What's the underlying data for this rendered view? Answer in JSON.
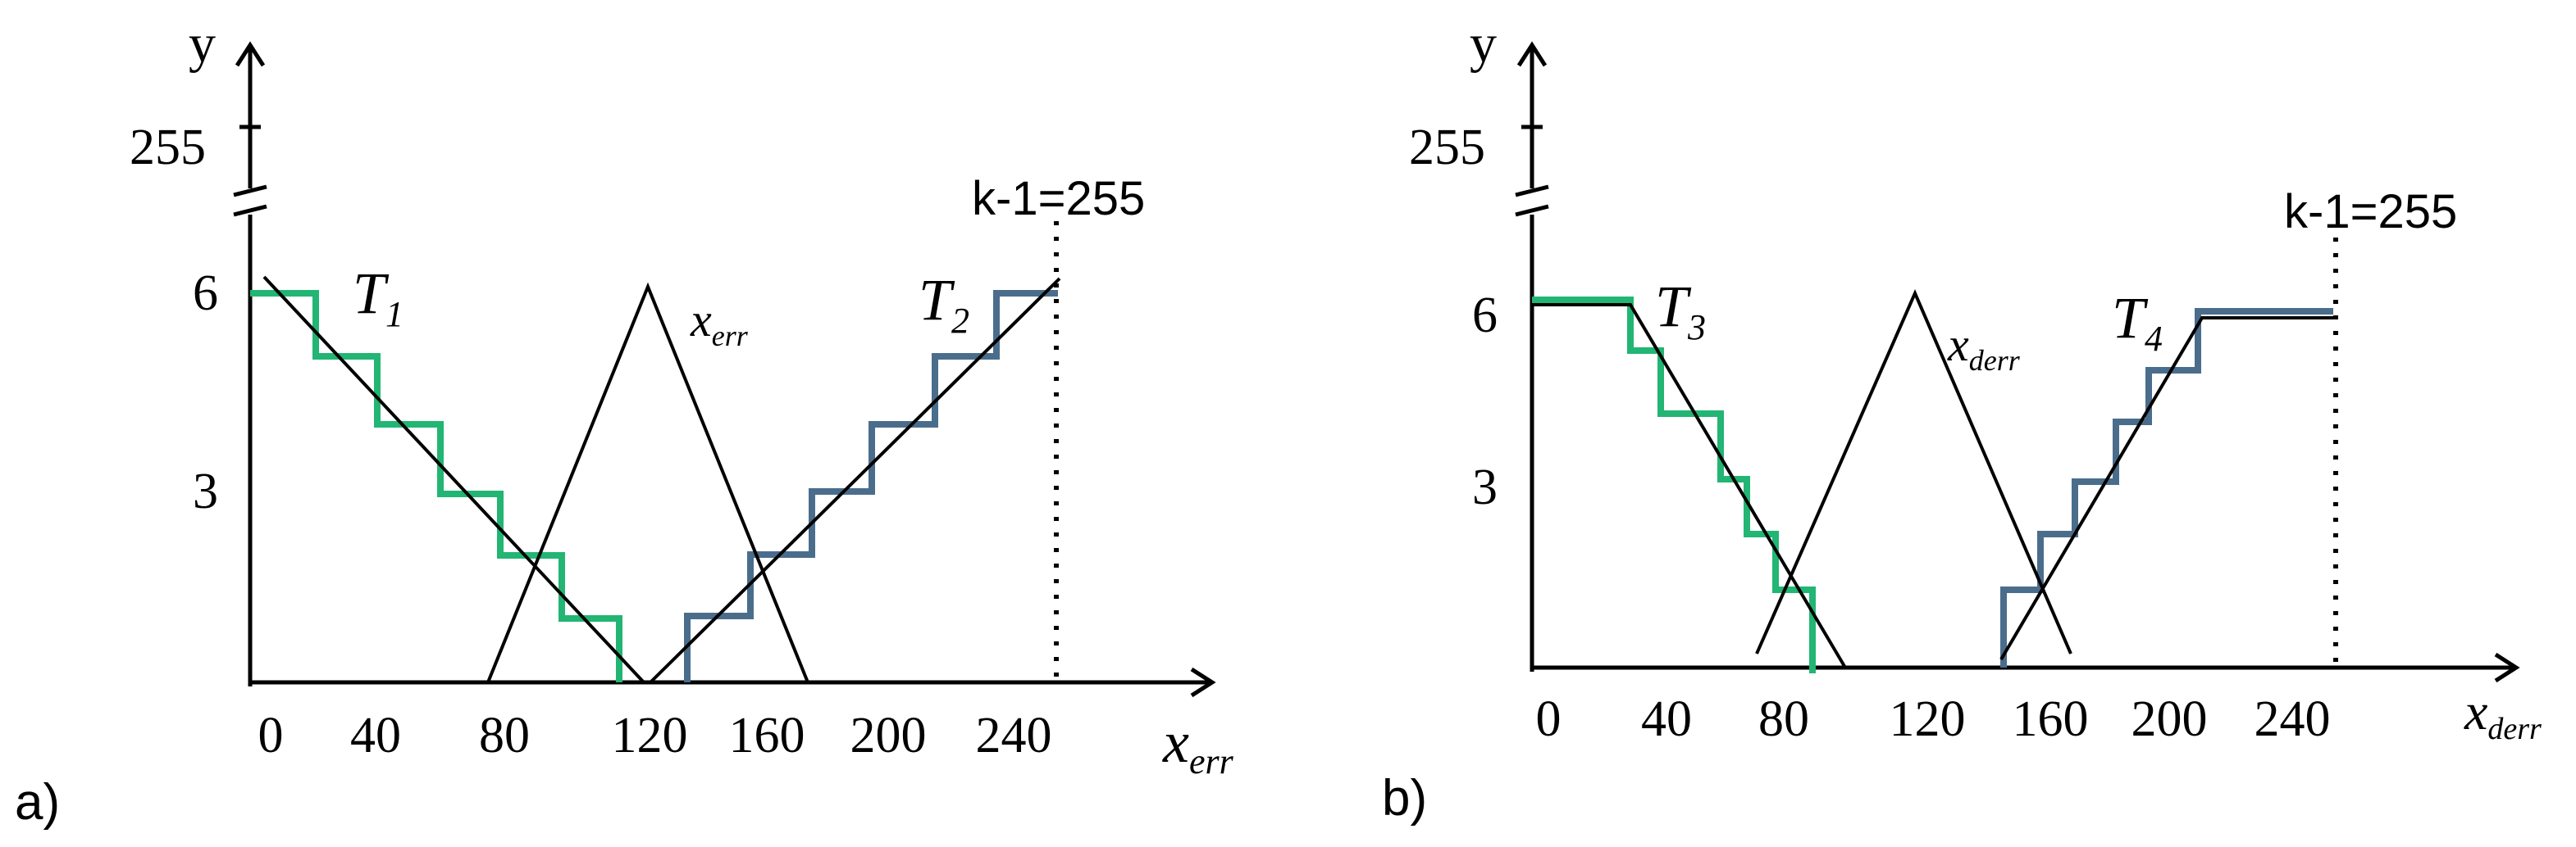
{
  "colors": {
    "green": "#22b573",
    "blue": "#4a6d8c",
    "ink": "#000000"
  },
  "panels": [
    {
      "letter": "a)",
      "y_label": "y",
      "y_break_label": "255",
      "y_ticks": [
        "6",
        "3"
      ],
      "x_ticks": [
        "0",
        "40",
        "80",
        "120",
        "160",
        "200",
        "240"
      ],
      "x_label_main": "x",
      "x_label_sub": "err",
      "k_label": "k-1=255",
      "left_set": {
        "main": "T",
        "sub": "1"
      },
      "right_set": {
        "main": "T",
        "sub": "2"
      },
      "tri_label_main": "x",
      "tri_label_sub": "err",
      "green_levels": [
        6,
        5,
        4,
        3,
        2,
        1
      ],
      "blue_levels": [
        1,
        2,
        3,
        4,
        5,
        6
      ]
    },
    {
      "letter": "b)",
      "y_label": "y",
      "y_break_label": "255",
      "y_ticks": [
        "6",
        "3"
      ],
      "x_ticks": [
        "0",
        "40",
        "80",
        "120",
        "160",
        "200",
        "240"
      ],
      "x_label_main": "x",
      "x_label_sub": "derr",
      "k_label": "k-1=255",
      "left_set": {
        "main": "T",
        "sub": "3"
      },
      "right_set": {
        "main": "T",
        "sub": "4"
      },
      "tri_label_main": "x",
      "tri_label_sub": "derr",
      "green_levels": [
        6,
        5,
        4,
        3,
        2,
        1
      ],
      "blue_levels": [
        1,
        2,
        3,
        4,
        5,
        6
      ]
    }
  ]
}
